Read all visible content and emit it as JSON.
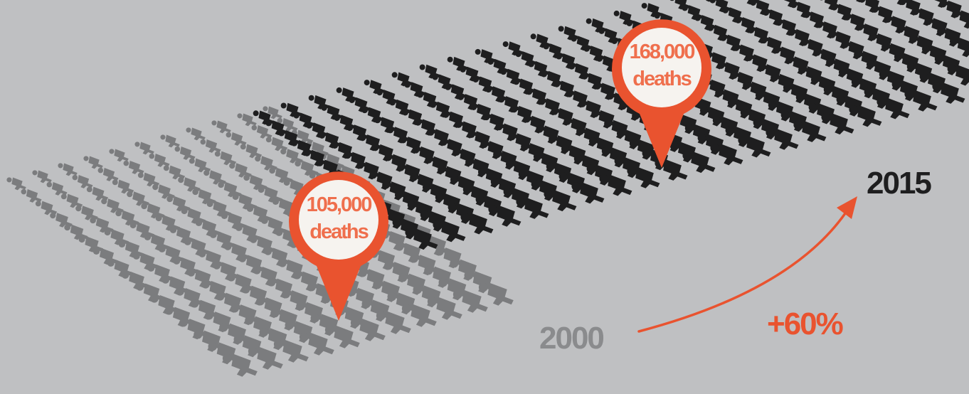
{
  "colors": {
    "background": "#bfc0c2",
    "figure_2000": "#7b7c7e",
    "figure_2015": "#1e1e1f",
    "accent": "#e9532f",
    "pin_text": "#ef6f4d",
    "pin_face": "#f6f3ef",
    "year_2000_text": "#8a8b8d",
    "year_2015_text": "#1e1e1f"
  },
  "pin_2000": {
    "value": "105,000",
    "unit": "deaths"
  },
  "pin_2015": {
    "value": "168,000",
    "unit": "deaths"
  },
  "year_start": "2000",
  "year_end": "2015",
  "change": "+60%",
  "icons": {
    "person": "person-icon",
    "pin": "map-pin-icon",
    "arrow": "curved-arrow-icon"
  }
}
